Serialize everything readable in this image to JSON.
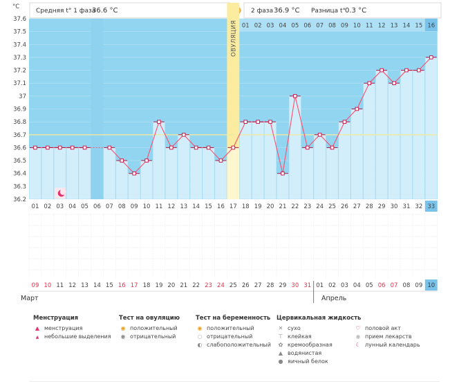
{
  "header": {
    "unit": "°C",
    "phase1_label": "Средняя t° 1 фаза",
    "phase1_value": "36.6 °C",
    "phase2_label": "2 фаза",
    "phase2_value": "36.9 °C",
    "diff_label": "Разница t°",
    "diff_value": "0.3 °C"
  },
  "ovulation_label": "ОВУЛЯЦИЯ",
  "month_labels": {
    "start": "Март",
    "next": "Апрель"
  },
  "post_ovulation_days": [
    "01",
    "02",
    "03",
    "04",
    "05",
    "06",
    "07",
    "08",
    "09",
    "10",
    "11",
    "12",
    "13",
    "14",
    "15",
    "16"
  ],
  "chart_data": {
    "type": "line",
    "xlabel": "",
    "ylabel": "°C",
    "ylim": [
      36.2,
      37.6
    ],
    "y_ticks": [
      "36.2",
      "36.3",
      "36.4",
      "36.5",
      "36.6",
      "36.7",
      "36.8",
      "36.9",
      "37",
      "37.1",
      "37.2",
      "37.3",
      "37.4",
      "37.5",
      "37.6"
    ],
    "cycle_days": [
      "01",
      "02",
      "03",
      "04",
      "05",
      "06",
      "07",
      "08",
      "09",
      "10",
      "11",
      "12",
      "13",
      "14",
      "15",
      "16",
      "17",
      "18",
      "19",
      "20",
      "21",
      "22",
      "23",
      "24",
      "25",
      "26",
      "27",
      "28",
      "29",
      "30",
      "31",
      "32",
      "33"
    ],
    "dates": [
      "09",
      "10",
      "11",
      "12",
      "13",
      "14",
      "15",
      "16",
      "17",
      "18",
      "19",
      "20",
      "21",
      "22",
      "23",
      "24",
      "25",
      "26",
      "27",
      "28",
      "29",
      "30",
      "31",
      "01",
      "02",
      "03",
      "04",
      "05",
      "06",
      "07",
      "08",
      "09",
      "10"
    ],
    "red_dates": [
      0,
      1,
      7,
      8,
      14,
      15,
      21,
      22,
      28,
      29
    ],
    "series": [
      {
        "values": [
          36.6,
          36.6,
          36.6,
          36.6,
          36.6,
          null,
          36.6,
          36.5,
          36.4,
          36.5,
          36.8,
          36.6,
          36.7,
          36.6,
          36.6,
          36.5,
          36.6,
          36.8,
          36.8,
          36.8,
          36.4,
          37.0,
          36.6,
          36.7,
          36.6,
          36.8,
          36.9,
          37.1,
          37.2,
          37.1,
          37.2,
          37.2,
          37.3
        ]
      }
    ],
    "baseline": 36.7,
    "ovulation_day": "17",
    "current_day": "33",
    "moon_day": "03"
  },
  "legend": {
    "menstruation": {
      "title": "Менструация",
      "items": [
        "менструация",
        "небольшие выделения"
      ]
    },
    "ovulation_test": {
      "title": "Тест на овуляцию",
      "items": [
        "положительный",
        "отрицательный"
      ]
    },
    "pregnancy_test": {
      "title": "Тест на беременность",
      "items": [
        "положительный",
        "отрицательный",
        "слабоположительный"
      ]
    },
    "cervical_fluid": {
      "title": "Цервикальная жидкость",
      "items": [
        "сухо",
        "клейкая",
        "кремообразная",
        "водянистая",
        "яичный белок"
      ]
    },
    "other": {
      "items": [
        "половой акт",
        "прием лекарств",
        "лунный календарь"
      ]
    },
    "icons": {
      "menstruation": "drops-icon",
      "light-spotting": "drop-icon",
      "ovulation-positive": "sun-icon",
      "ovulation-negative": "circle-icon",
      "cervical-dry": "cross-icon",
      "cervical-sticky": "sticky-icon",
      "cervical-creamy": "swirl-icon",
      "cervical-watery": "drop-icon",
      "cervical-eggwhite": "blob-icon",
      "intercourse": "heart-icon",
      "medication": "pill-icon",
      "lunar": "moon-icon"
    }
  },
  "colors": {
    "bar": "#d2eefb",
    "bar_stroke": "#a9dcf2",
    "bar_dark": "#8fd2ef",
    "plot_bg": "#92d5f0",
    "line": "#ff4d6d",
    "point": "#cc1c4c",
    "ovulation": "#fbeca0",
    "baseline": "#f2e9a2",
    "weekend": "#e8304b",
    "current": "#79c3ea"
  }
}
